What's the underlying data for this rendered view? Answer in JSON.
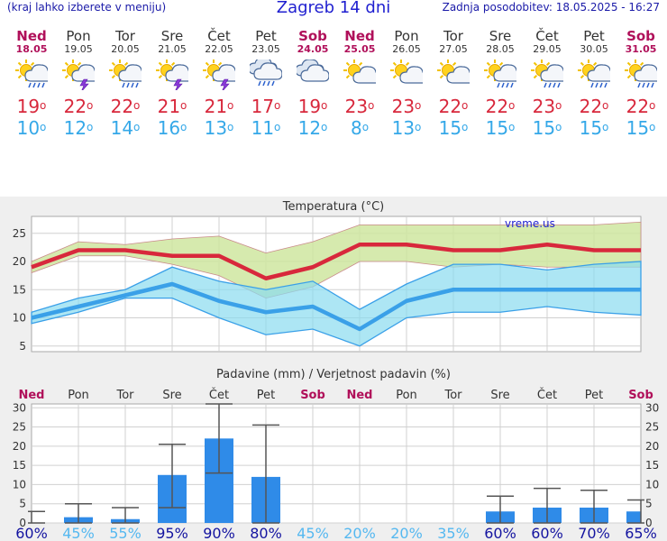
{
  "header": {
    "left_note": "(kraj lahko izberete v meniju)",
    "title": "Zagreb 14 dni",
    "updated": "Zadnja posodobitev: 18.05.2025 - 16:27"
  },
  "days": [
    {
      "name": "Ned",
      "date": "18.05",
      "weekend": true,
      "icon": "sun-cloud-rain-icon",
      "max": "19",
      "min": "10"
    },
    {
      "name": "Pon",
      "date": "19.05",
      "weekend": false,
      "icon": "sun-cloud-storm-icon",
      "max": "22",
      "min": "12"
    },
    {
      "name": "Tor",
      "date": "20.05",
      "weekend": false,
      "icon": "sun-cloud-rain-icon",
      "max": "22",
      "min": "14"
    },
    {
      "name": "Sre",
      "date": "21.05",
      "weekend": false,
      "icon": "sun-cloud-storm-icon",
      "max": "21",
      "min": "16"
    },
    {
      "name": "Čet",
      "date": "22.05",
      "weekend": false,
      "icon": "sun-cloud-storm-icon",
      "max": "21",
      "min": "13"
    },
    {
      "name": "Pet",
      "date": "23.05",
      "weekend": false,
      "icon": "cloud-rain-icon",
      "max": "17",
      "min": "11"
    },
    {
      "name": "Sob",
      "date": "24.05",
      "weekend": true,
      "icon": "cloud-icon",
      "max": "19",
      "min": "12"
    },
    {
      "name": "Ned",
      "date": "25.05",
      "weekend": true,
      "icon": "sun-cloud-icon",
      "max": "23",
      "min": "8"
    },
    {
      "name": "Pon",
      "date": "26.05",
      "weekend": false,
      "icon": "sun-cloud-icon",
      "max": "23",
      "min": "13"
    },
    {
      "name": "Tor",
      "date": "27.05",
      "weekend": false,
      "icon": "sun-cloud-icon",
      "max": "22",
      "min": "15"
    },
    {
      "name": "Sre",
      "date": "28.05",
      "weekend": false,
      "icon": "sun-cloud-rain-icon",
      "max": "22",
      "min": "15"
    },
    {
      "name": "Čet",
      "date": "29.05",
      "weekend": false,
      "icon": "sun-cloud-rain-icon",
      "max": "23",
      "min": "15"
    },
    {
      "name": "Pet",
      "date": "30.05",
      "weekend": false,
      "icon": "sun-cloud-rain-icon",
      "max": "22",
      "min": "15"
    },
    {
      "name": "Sob",
      "date": "31.05",
      "weekend": true,
      "icon": "sun-cloud-rain-icon",
      "max": "22",
      "min": "15"
    }
  ],
  "degree": "o",
  "colors": {
    "weekend": "#b0105a",
    "max": "#d8283c",
    "min": "#35a8e8",
    "precip_bar": "#2f8be8",
    "prob_dark": "#1414a0",
    "prob_light": "#55b8f0"
  },
  "chart_data": [
    {
      "type": "line",
      "title": "Temperatura (°C)",
      "watermark": "vreme.us",
      "categories": [
        "18.05",
        "19.05",
        "20.05",
        "21.05",
        "22.05",
        "23.05",
        "24.05",
        "25.05",
        "26.05",
        "27.05",
        "28.05",
        "29.05",
        "30.05",
        "31.05"
      ],
      "ylim": [
        4,
        28
      ],
      "yticks": [
        5,
        10,
        15,
        20,
        25
      ],
      "grid": true,
      "series": [
        {
          "role": "max_line",
          "values": [
            19,
            22,
            22,
            21,
            21,
            17,
            19,
            23,
            23,
            22,
            22,
            23,
            22,
            22
          ]
        },
        {
          "role": "max_upper",
          "values": [
            20,
            23.5,
            23,
            24,
            24.5,
            21.5,
            23.5,
            26.5,
            26.5,
            26.5,
            26.5,
            26.5,
            26.5,
            27
          ]
        },
        {
          "role": "max_lower",
          "values": [
            18,
            21,
            21,
            19.5,
            17.5,
            13.5,
            15.5,
            20,
            20,
            19,
            19.5,
            19,
            19,
            19
          ]
        },
        {
          "role": "min_line",
          "values": [
            10,
            12,
            14,
            16,
            13,
            11,
            12,
            8,
            13,
            15,
            15,
            15,
            15,
            15
          ]
        },
        {
          "role": "min_upper",
          "values": [
            11,
            13.5,
            15,
            19,
            16.5,
            15,
            16.5,
            11.5,
            16,
            19.5,
            19.5,
            18.5,
            19.5,
            20
          ]
        },
        {
          "role": "min_lower",
          "values": [
            9,
            11,
            13.5,
            13.5,
            10,
            7,
            8,
            5,
            10,
            11,
            11,
            12,
            11,
            10.5
          ]
        }
      ]
    },
    {
      "type": "bar",
      "title": "Padavine (mm) / Verjetnost padavin (%)",
      "categories": [
        "Ned",
        "Pon",
        "Tor",
        "Sre",
        "Čet",
        "Pet",
        "Sob",
        "Ned",
        "Pon",
        "Tor",
        "Sre",
        "Čet",
        "Pet",
        "Sob"
      ],
      "ylim": [
        0,
        31
      ],
      "yticks": [
        0,
        5,
        10,
        15,
        20,
        25,
        30
      ],
      "values": [
        0,
        1.5,
        1,
        12.5,
        22,
        12,
        0,
        0,
        0,
        0,
        3,
        4,
        4,
        3
      ],
      "error_low": [
        0,
        0,
        0,
        4,
        13,
        0,
        0,
        0,
        0,
        0,
        0,
        0,
        0,
        0
      ],
      "error_high": [
        3,
        5,
        4,
        20.5,
        31,
        25.5,
        0,
        0,
        0,
        0,
        7,
        9,
        8.5,
        6
      ],
      "probability": [
        "60%",
        "45%",
        "55%",
        "95%",
        "90%",
        "80%",
        "45%",
        "20%",
        "20%",
        "35%",
        "60%",
        "60%",
        "70%",
        "65%"
      ],
      "probability_dark": [
        true,
        false,
        false,
        true,
        true,
        true,
        false,
        false,
        false,
        false,
        true,
        true,
        true,
        true
      ]
    }
  ]
}
